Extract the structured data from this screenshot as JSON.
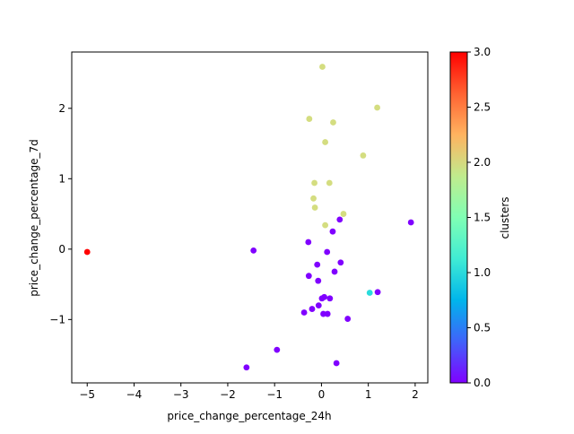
{
  "chart_data": {
    "type": "scatter",
    "title": "",
    "xlabel": "price_change_percentage_24h",
    "ylabel": "price_change_percentage_7d",
    "xlim": [
      -5.33,
      2.27
    ],
    "ylim": [
      -1.9,
      2.8
    ],
    "xticks": [
      -5,
      -4,
      -3,
      -2,
      -1,
      0,
      1,
      2
    ],
    "yticks": [
      -1,
      0,
      1,
      2
    ],
    "grid": false,
    "legend": "none",
    "colorbar": {
      "label": "clusters",
      "min": 0.0,
      "max": 3.0,
      "ticks": [
        0.0,
        0.5,
        1.0,
        1.5,
        2.0,
        2.5,
        3.0
      ],
      "tick_labels": [
        "0.0",
        "0.5",
        "1.0",
        "1.5",
        "2.0",
        "2.5",
        "3.0"
      ],
      "colormap": "rainbow"
    },
    "cluster_colors": {
      "0": "#8000ff",
      "1": "#2adcdc",
      "2": "#d4dd80",
      "3": "#ff0000"
    },
    "points": [
      {
        "x": 0.02,
        "y": 2.59,
        "cluster": 2
      },
      {
        "x": 1.19,
        "y": 2.01,
        "cluster": 2
      },
      {
        "x": -0.26,
        "y": 1.85,
        "cluster": 2
      },
      {
        "x": 0.25,
        "y": 1.8,
        "cluster": 2
      },
      {
        "x": 0.08,
        "y": 1.52,
        "cluster": 2
      },
      {
        "x": 0.89,
        "y": 1.33,
        "cluster": 2
      },
      {
        "x": -0.15,
        "y": 0.94,
        "cluster": 2
      },
      {
        "x": 0.17,
        "y": 0.94,
        "cluster": 2
      },
      {
        "x": -0.17,
        "y": 0.72,
        "cluster": 2
      },
      {
        "x": -0.14,
        "y": 0.59,
        "cluster": 2
      },
      {
        "x": 0.47,
        "y": 0.5,
        "cluster": 2
      },
      {
        "x": 0.08,
        "y": 0.34,
        "cluster": 2
      },
      {
        "x": 0.39,
        "y": 0.42,
        "cluster": 0
      },
      {
        "x": 1.91,
        "y": 0.38,
        "cluster": 0
      },
      {
        "x": 0.24,
        "y": 0.25,
        "cluster": 0
      },
      {
        "x": -0.28,
        "y": 0.1,
        "cluster": 0
      },
      {
        "x": -1.45,
        "y": -0.02,
        "cluster": 0
      },
      {
        "x": 0.12,
        "y": -0.04,
        "cluster": 0
      },
      {
        "x": 0.41,
        "y": -0.19,
        "cluster": 0
      },
      {
        "x": -0.09,
        "y": -0.22,
        "cluster": 0
      },
      {
        "x": 0.28,
        "y": -0.32,
        "cluster": 0
      },
      {
        "x": -0.27,
        "y": -0.38,
        "cluster": 0
      },
      {
        "x": -0.07,
        "y": -0.45,
        "cluster": 0
      },
      {
        "x": 1.03,
        "y": -0.62,
        "cluster": 1
      },
      {
        "x": 1.2,
        "y": -0.61,
        "cluster": 0
      },
      {
        "x": 0.06,
        "y": -0.68,
        "cluster": 0
      },
      {
        "x": 0.01,
        "y": -0.7,
        "cluster": 0
      },
      {
        "x": 0.18,
        "y": -0.7,
        "cluster": 0
      },
      {
        "x": -0.06,
        "y": -0.8,
        "cluster": 0
      },
      {
        "x": -0.2,
        "y": -0.85,
        "cluster": 0
      },
      {
        "x": -0.37,
        "y": -0.9,
        "cluster": 0
      },
      {
        "x": 0.04,
        "y": -0.92,
        "cluster": 0
      },
      {
        "x": 0.13,
        "y": -0.92,
        "cluster": 0
      },
      {
        "x": 0.56,
        "y": -0.99,
        "cluster": 0
      },
      {
        "x": -0.95,
        "y": -1.43,
        "cluster": 0
      },
      {
        "x": 0.32,
        "y": -1.62,
        "cluster": 0
      },
      {
        "x": -1.6,
        "y": -1.68,
        "cluster": 0
      },
      {
        "x": -5.0,
        "y": -0.04,
        "cluster": 3
      }
    ]
  }
}
